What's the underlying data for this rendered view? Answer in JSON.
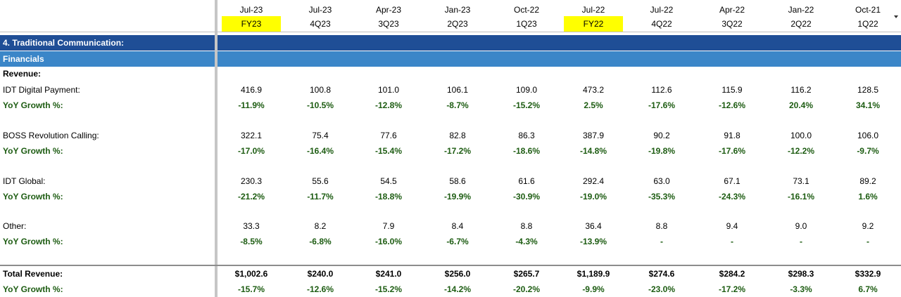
{
  "columns": [
    {
      "period": "Jul-23",
      "fy": "FY23",
      "highlight": true
    },
    {
      "period": "Jul-23",
      "fy": "4Q23",
      "highlight": false
    },
    {
      "period": "Apr-23",
      "fy": "3Q23",
      "highlight": false
    },
    {
      "period": "Jan-23",
      "fy": "2Q23",
      "highlight": false
    },
    {
      "period": "Oct-22",
      "fy": "1Q23",
      "highlight": false
    },
    {
      "period": "Jul-22",
      "fy": "FY22",
      "highlight": true
    },
    {
      "period": "Jul-22",
      "fy": "4Q22",
      "highlight": false
    },
    {
      "period": "Apr-22",
      "fy": "3Q22",
      "highlight": false
    },
    {
      "period": "Jan-22",
      "fy": "2Q22",
      "highlight": false
    },
    {
      "period": "Oct-21",
      "fy": "1Q22",
      "highlight": false
    }
  ],
  "section_title": "4. Traditional Communication:",
  "subsection_title": "Financials",
  "revenue_label": "Revenue:",
  "rows": [
    {
      "label": "IDT Digital Payment:",
      "values": [
        "416.9",
        "100.8",
        "101.0",
        "106.1",
        "109.0",
        "473.2",
        "112.6",
        "115.9",
        "116.2",
        "128.5"
      ]
    },
    {
      "label": "YoY Growth %:",
      "growth": true,
      "values": [
        "-11.9%",
        "-10.5%",
        "-12.8%",
        "-8.7%",
        "-15.2%",
        "2.5%",
        "-17.6%",
        "-12.6%",
        "20.4%",
        "34.1%"
      ]
    },
    {
      "label": "BOSS Revolution Calling:",
      "values": [
        "322.1",
        "75.4",
        "77.6",
        "82.8",
        "86.3",
        "387.9",
        "90.2",
        "91.8",
        "100.0",
        "106.0"
      ]
    },
    {
      "label": "YoY Growth %:",
      "growth": true,
      "values": [
        "-17.0%",
        "-16.4%",
        "-15.4%",
        "-17.2%",
        "-18.6%",
        "-14.8%",
        "-19.8%",
        "-17.6%",
        "-12.2%",
        "-9.7%"
      ]
    },
    {
      "label": "IDT Global:",
      "values": [
        "230.3",
        "55.6",
        "54.5",
        "58.6",
        "61.6",
        "292.4",
        "63.0",
        "67.1",
        "73.1",
        "89.2"
      ]
    },
    {
      "label": "YoY Growth %:",
      "growth": true,
      "values": [
        "-21.2%",
        "-11.7%",
        "-18.8%",
        "-19.9%",
        "-30.9%",
        "-19.0%",
        "-35.3%",
        "-24.3%",
        "-16.1%",
        "1.6%"
      ]
    },
    {
      "label": "Other:",
      "values": [
        "33.3",
        "8.2",
        "7.9",
        "8.4",
        "8.8",
        "36.4",
        "8.8",
        "9.4",
        "9.0",
        "9.2"
      ]
    },
    {
      "label": "YoY Growth %:",
      "growth": true,
      "values": [
        "-8.5%",
        "-6.8%",
        "-16.0%",
        "-6.7%",
        "-4.3%",
        "-13.9%",
        "-",
        "-",
        "-",
        "-"
      ]
    },
    {
      "label": "Total Revenue:",
      "total": true,
      "values": [
        "$1,002.6",
        "$240.0",
        "$241.0",
        "$256.0",
        "$265.7",
        "$1,189.9",
        "$274.6",
        "$284.2",
        "$298.3",
        "$332.9"
      ]
    },
    {
      "label": "YoY Growth %:",
      "growth": true,
      "values": [
        "-15.7%",
        "-12.6%",
        "-15.2%",
        "-14.2%",
        "-20.2%",
        "-9.9%",
        "-23.0%",
        "-17.2%",
        "-3.3%",
        "6.7%"
      ]
    }
  ]
}
